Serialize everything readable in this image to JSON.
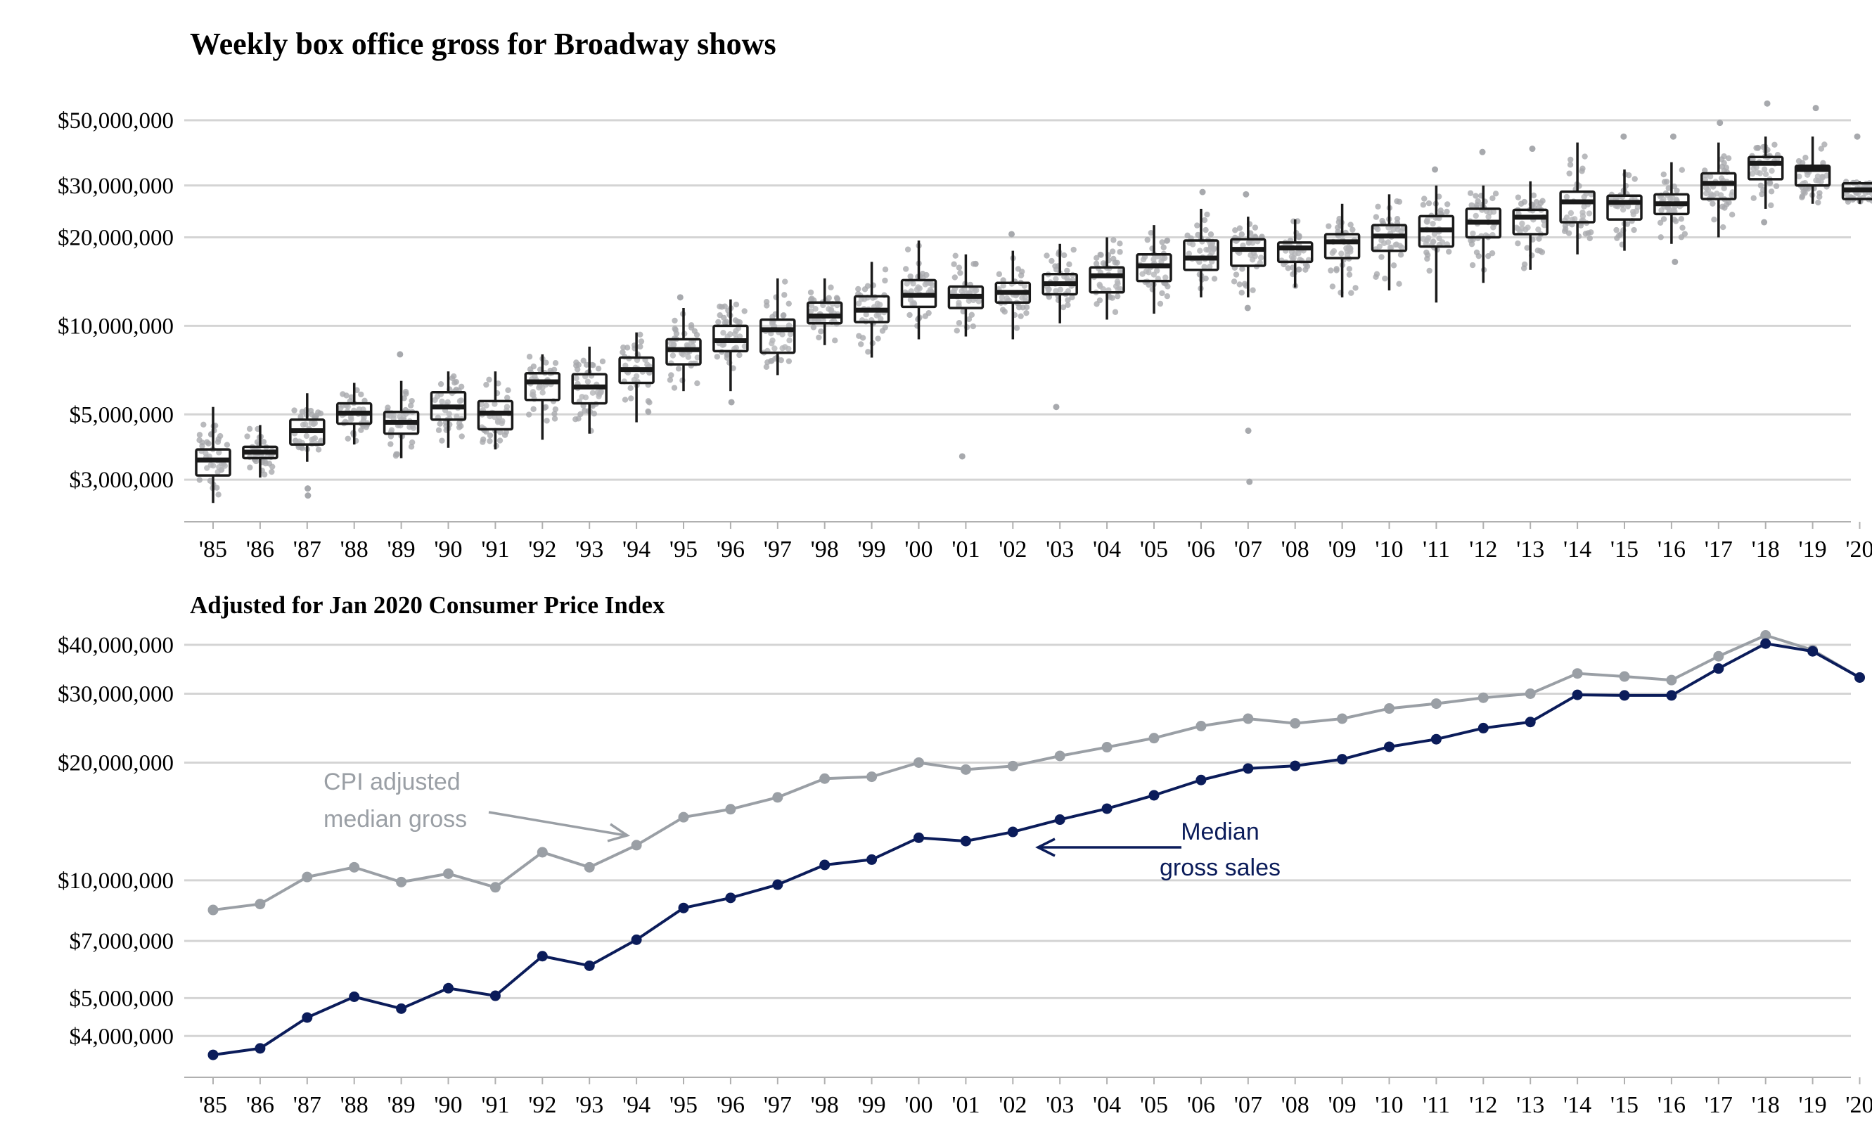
{
  "chart_data": [
    {
      "type": "box",
      "title": "Weekly box office gross for Broadway shows",
      "xlabel": "",
      "ylabel": "",
      "y_scale": "log",
      "ylim": [
        2300000,
        64000000
      ],
      "y_ticks": [
        {
          "value": 3000000,
          "label": "$3,000,000"
        },
        {
          "value": 5000000,
          "label": "$5,000,000"
        },
        {
          "value": 10000000,
          "label": "$10,000,000"
        },
        {
          "value": 20000000,
          "label": "$20,000,000"
        },
        {
          "value": 30000000,
          "label": "$30,000,000"
        },
        {
          "value": 50000000,
          "label": "$50,000,000"
        }
      ],
      "categories": [
        "'85",
        "'86",
        "'87",
        "'88",
        "'89",
        "'90",
        "'91",
        "'92",
        "'93",
        "'94",
        "'95",
        "'96",
        "'97",
        "'98",
        "'99",
        "'00",
        "'01",
        "'02",
        "'03",
        "'04",
        "'05",
        "'06",
        "'07",
        "'08",
        "'09",
        "'10",
        "'11",
        "'12",
        "'13",
        "'14",
        "'15",
        "'16",
        "'17",
        "'18",
        "'19",
        "'20"
      ],
      "boxes": [
        {
          "q1": 3100000,
          "median": 3500000,
          "q3": 3800000,
          "min": 2500000,
          "max": 5300000
        },
        {
          "q1": 3550000,
          "median": 3720000,
          "q3": 3880000,
          "min": 3050000,
          "max": 4600000
        },
        {
          "q1": 3950000,
          "median": 4400000,
          "q3": 4800000,
          "min": 3450000,
          "max": 5900000,
          "outliers": [
            2650000,
            2800000
          ]
        },
        {
          "q1": 4650000,
          "median": 5050000,
          "q3": 5450000,
          "min": 3950000,
          "max": 6400000
        },
        {
          "q1": 4300000,
          "median": 4700000,
          "q3": 5100000,
          "min": 3550000,
          "max": 6500000,
          "outliers": [
            8000000
          ]
        },
        {
          "q1": 4800000,
          "median": 5300000,
          "q3": 5950000,
          "min": 3850000,
          "max": 7000000
        },
        {
          "q1": 4450000,
          "median": 5050000,
          "q3": 5550000,
          "min": 3800000,
          "max": 7000000
        },
        {
          "q1": 5600000,
          "median": 6450000,
          "q3": 6900000,
          "min": 4100000,
          "max": 8000000
        },
        {
          "q1": 5450000,
          "median": 6200000,
          "q3": 6850000,
          "min": 4300000,
          "max": 8500000
        },
        {
          "q1": 6400000,
          "median": 7100000,
          "q3": 7800000,
          "min": 4700000,
          "max": 9500000
        },
        {
          "q1": 7400000,
          "median": 8300000,
          "q3": 9000000,
          "min": 6000000,
          "max": 11500000,
          "outliers": [
            12500000
          ]
        },
        {
          "q1": 8200000,
          "median": 8900000,
          "q3": 10000000,
          "min": 6000000,
          "max": 12300000,
          "outliers": [
            5500000
          ]
        },
        {
          "q1": 8100000,
          "median": 9700000,
          "q3": 10500000,
          "min": 6800000,
          "max": 14500000
        },
        {
          "q1": 10200000,
          "median": 10800000,
          "q3": 12000000,
          "min": 8600000,
          "max": 14500000
        },
        {
          "q1": 10300000,
          "median": 11300000,
          "q3": 12600000,
          "min": 7800000,
          "max": 16500000
        },
        {
          "q1": 11600000,
          "median": 12700000,
          "q3": 14300000,
          "min": 9000000,
          "max": 19500000
        },
        {
          "q1": 11500000,
          "median": 12600000,
          "q3": 13600000,
          "min": 9200000,
          "max": 17500000,
          "outliers": [
            3600000
          ]
        },
        {
          "q1": 12000000,
          "median": 13000000,
          "q3": 14000000,
          "min": 9000000,
          "max": 18000000,
          "outliers": [
            20500000
          ]
        },
        {
          "q1": 12800000,
          "median": 13900000,
          "q3": 15000000,
          "min": 10200000,
          "max": 19000000,
          "outliers": [
            5300000
          ]
        },
        {
          "q1": 13000000,
          "median": 14800000,
          "q3": 15800000,
          "min": 10500000,
          "max": 20000000
        },
        {
          "q1": 14200000,
          "median": 16000000,
          "q3": 17500000,
          "min": 11000000,
          "max": 22000000
        },
        {
          "q1": 15500000,
          "median": 17000000,
          "q3": 19500000,
          "min": 12500000,
          "max": 25000000,
          "outliers": [
            28500000
          ]
        },
        {
          "q1": 16000000,
          "median": 18200000,
          "q3": 19700000,
          "min": 12500000,
          "max": 23500000,
          "outliers": [
            11500000,
            4400000,
            2950000,
            28000000
          ]
        },
        {
          "q1": 16500000,
          "median": 18400000,
          "q3": 19200000,
          "min": 13500000,
          "max": 23000000
        },
        {
          "q1": 17000000,
          "median": 19300000,
          "q3": 20500000,
          "min": 12500000,
          "max": 26000000
        },
        {
          "q1": 18000000,
          "median": 20200000,
          "q3": 22000000,
          "min": 13200000,
          "max": 28000000
        },
        {
          "q1": 18600000,
          "median": 21200000,
          "q3": 23600000,
          "min": 12000000,
          "max": 30000000,
          "outliers": [
            34000000
          ]
        },
        {
          "q1": 20000000,
          "median": 22500000,
          "q3": 25000000,
          "min": 14000000,
          "max": 30000000,
          "outliers": [
            39000000
          ]
        },
        {
          "q1": 20500000,
          "median": 23400000,
          "q3": 24800000,
          "min": 15500000,
          "max": 31000000,
          "outliers": [
            40000000
          ]
        },
        {
          "q1": 22500000,
          "median": 26400000,
          "q3": 28600000,
          "min": 17500000,
          "max": 42000000
        },
        {
          "q1": 23000000,
          "median": 26300000,
          "q3": 27700000,
          "min": 18000000,
          "max": 34000000,
          "outliers": [
            44000000
          ]
        },
        {
          "q1": 24000000,
          "median": 26000000,
          "q3": 28000000,
          "min": 19000000,
          "max": 36000000,
          "outliers": [
            16500000,
            44000000
          ]
        },
        {
          "q1": 27000000,
          "median": 30500000,
          "q3": 33000000,
          "min": 20000000,
          "max": 42000000,
          "outliers": [
            49000000
          ]
        },
        {
          "q1": 31500000,
          "median": 35700000,
          "q3": 37500000,
          "min": 25000000,
          "max": 44000000,
          "outliers": [
            22500000,
            57000000
          ]
        },
        {
          "q1": 30000000,
          "median": 34000000,
          "q3": 35000000,
          "min": 26000000,
          "max": 44000000,
          "outliers": [
            55000000
          ]
        },
        {
          "q1": 27000000,
          "median": 29000000,
          "q3": 30500000,
          "min": 26000000,
          "max": 31000000,
          "outliers": [
            44000000
          ]
        }
      ]
    },
    {
      "type": "line",
      "title": "Adjusted for Jan 2020 Consumer Price Index",
      "xlabel": "",
      "ylabel": "",
      "y_scale": "log",
      "ylim": [
        3400000,
        42000000
      ],
      "y_ticks": [
        {
          "value": 4000000,
          "label": "$4,000,000"
        },
        {
          "value": 5000000,
          "label": "$5,000,000"
        },
        {
          "value": 7000000,
          "label": "$7,000,000"
        },
        {
          "value": 10000000,
          "label": "$10,000,000"
        },
        {
          "value": 20000000,
          "label": "$20,000,000"
        },
        {
          "value": 30000000,
          "label": "$30,000,000"
        },
        {
          "value": 40000000,
          "label": "$40,000,000"
        }
      ],
      "categories": [
        "'85",
        "'86",
        "'87",
        "'88",
        "'89",
        "'90",
        "'91",
        "'92",
        "'93",
        "'94",
        "'95",
        "'96",
        "'97",
        "'98",
        "'99",
        "'00",
        "'01",
        "'02",
        "'03",
        "'04",
        "'05",
        "'06",
        "'07",
        "'08",
        "'09",
        "'10",
        "'11",
        "'12",
        "'13",
        "'14",
        "'15",
        "'16",
        "'17",
        "'18",
        "'19",
        "'20"
      ],
      "series": [
        {
          "color": "#9a9fa5",
          "values": [
            8400000,
            8700000,
            10200000,
            10800000,
            9900000,
            10400000,
            9600000,
            11800000,
            10800000,
            12300000,
            14500000,
            15200000,
            16300000,
            18200000,
            18400000,
            20000000,
            19200000,
            19600000,
            20800000,
            21900000,
            23100000,
            24800000,
            25900000,
            25200000,
            25900000,
            27500000,
            28300000,
            29300000,
            30000000,
            33800000,
            33200000,
            32500000,
            37400000,
            42300000,
            38800000,
            33000000
          ]
        },
        {
          "color": "#0b1c5a",
          "values": [
            3580000,
            3720000,
            4460000,
            5040000,
            4700000,
            5300000,
            5070000,
            6400000,
            6050000,
            7050000,
            8500000,
            9020000,
            9750000,
            10950000,
            11300000,
            12850000,
            12600000,
            13300000,
            14300000,
            15250000,
            16500000,
            18050000,
            19320000,
            19620000,
            20400000,
            21950000,
            22950000,
            24500000,
            25400000,
            29800000,
            29700000,
            29700000,
            34800000,
            40300000,
            38500000,
            33000000
          ]
        }
      ],
      "annotations": [
        {
          "lines": [
            "CPI adjusted",
            "median gross"
          ],
          "color": "#9a9fa5"
        },
        {
          "lines": [
            "Median",
            "gross sales"
          ],
          "color": "#0b1c5a"
        }
      ]
    }
  ]
}
